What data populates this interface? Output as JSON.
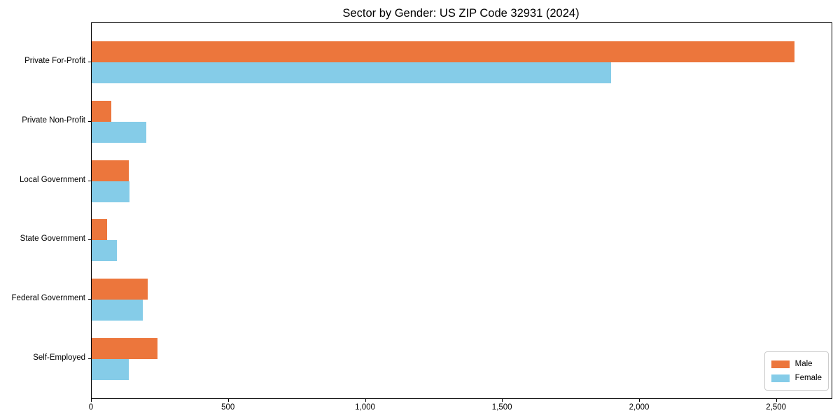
{
  "chart_data": {
    "type": "bar",
    "orientation": "horizontal",
    "title": "Sector by Gender: US ZIP Code 32931 (2024)",
    "categories": [
      "Private For-Profit",
      "Private Non-Profit",
      "Local Government",
      "State Government",
      "Federal Government",
      "Self-Employed"
    ],
    "series": [
      {
        "name": "Male",
        "color": "#EC763C",
        "values": [
          2565,
          72,
          135,
          56,
          205,
          240
        ]
      },
      {
        "name": "Female",
        "color": "#85CCE8",
        "values": [
          1895,
          200,
          138,
          91,
          187,
          135
        ]
      }
    ],
    "xlabel": "",
    "ylabel": "",
    "xlim": [
      0,
      2700
    ],
    "x_ticks": {
      "values": [
        0,
        500,
        1000,
        1500,
        2000,
        2500
      ],
      "labels": [
        "0",
        "500",
        "1,000",
        "1,500",
        "2,000",
        "2,500"
      ]
    },
    "grid": false,
    "legend": {
      "position": "lower right",
      "entries": [
        "Male",
        "Female"
      ]
    }
  }
}
